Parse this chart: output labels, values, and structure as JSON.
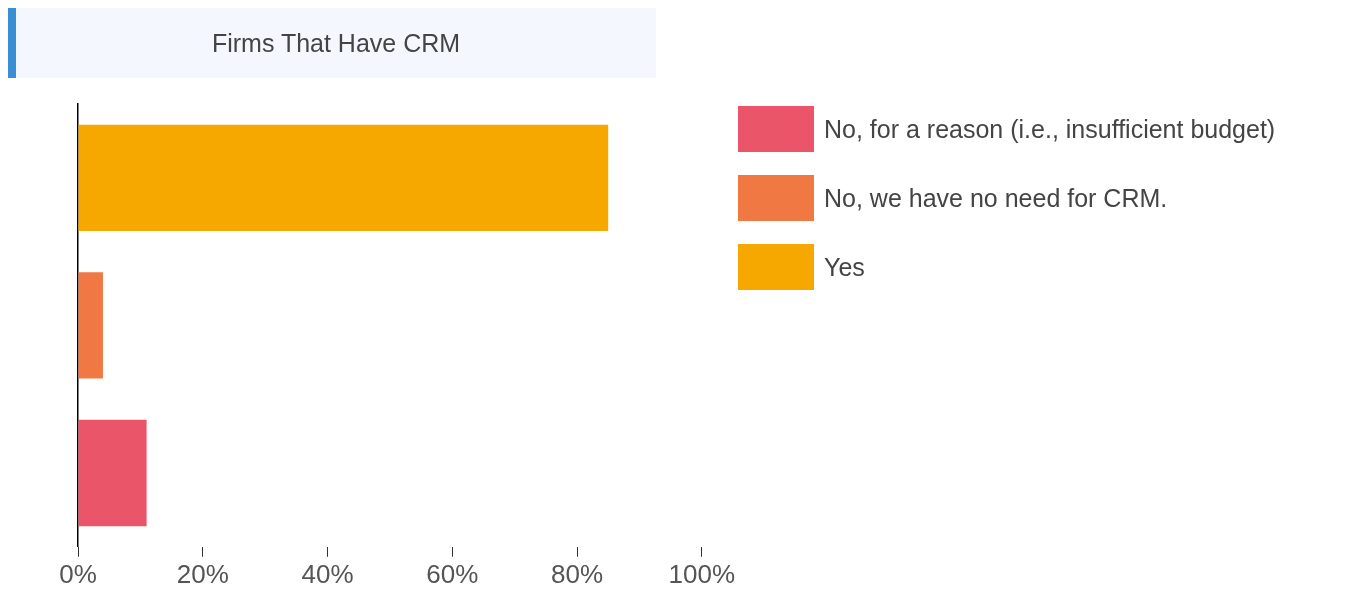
{
  "chart_data": {
    "type": "bar",
    "title": "Firms That Have CRM",
    "orientation": "horizontal",
    "stacked": true,
    "legend": "right",
    "categories": [
      null,
      null,
      null
    ],
    "series": [
      {
        "name": "No, for a reason (i.e., insufficient budget)",
        "color": "#eb5569",
        "values": [
          null,
          null,
          11
        ]
      },
      {
        "name": "No, we have no need for CRM.",
        "color": "#ef7843",
        "values": [
          null,
          4,
          null
        ]
      },
      {
        "name": "Yes",
        "color": "#f6a800",
        "values": [
          85,
          null,
          null
        ]
      }
    ],
    "xlim": [
      0,
      100
    ],
    "xticks": [
      {
        "value": 0,
        "label": "0%"
      },
      {
        "value": 20,
        "label": "20%"
      },
      {
        "value": 40,
        "label": "40%"
      },
      {
        "value": 60,
        "label": "60%"
      },
      {
        "value": 80,
        "label": "80%"
      },
      {
        "value": 100,
        "label": "100%"
      }
    ]
  }
}
